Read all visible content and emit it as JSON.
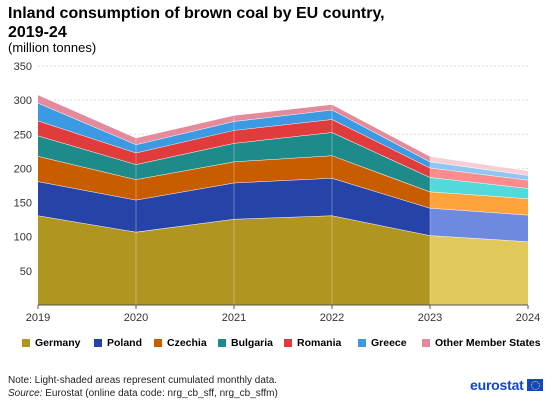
{
  "header": {
    "title": "Inland consumption of brown coal by EU country, 2019-24",
    "subtitle": "(million tonnes)"
  },
  "footer": {
    "note": "Note: Light-shaded areas represent cumulated monthly data.",
    "source_label": "Source:",
    "source_text": " Eurostat (online data code: nrg_cb_sff, nrg_cb_sffm)",
    "logo_text": "eurostat"
  },
  "chart_data": {
    "type": "area",
    "stacked": true,
    "categories": [
      "2019",
      "2020",
      "2021",
      "2022",
      "2023",
      "2024"
    ],
    "ylim": [
      0,
      350
    ],
    "yticks": [
      50,
      100,
      150,
      200,
      250,
      300,
      350
    ],
    "grid": true,
    "legend_position": "bottom",
    "light_shaded_from": "2023",
    "series": [
      {
        "name": "Germany",
        "color": "#b09520",
        "light_color": "#e0c95a",
        "values": [
          131,
          107,
          126,
          131,
          102,
          93
        ]
      },
      {
        "name": "Poland",
        "color": "#2644a7",
        "light_color": "#6e8ae0",
        "values": [
          50,
          47,
          53,
          55,
          40,
          39
        ]
      },
      {
        "name": "Czechia",
        "color": "#c85d00",
        "light_color": "#ffa33a",
        "values": [
          37,
          30,
          31,
          33,
          24,
          24
        ]
      },
      {
        "name": "Bulgaria",
        "color": "#1f8a8a",
        "light_color": "#53d9d9",
        "values": [
          30,
          22,
          27,
          34,
          21,
          15
        ]
      },
      {
        "name": "Romania",
        "color": "#e03c3c",
        "light_color": "#ff8c8c",
        "values": [
          22,
          17,
          19,
          19,
          14,
          12
        ]
      },
      {
        "name": "Greece",
        "color": "#3b9ae1",
        "light_color": "#8ec8f2",
        "values": [
          26,
          12,
          13,
          14,
          9,
          7
        ]
      },
      {
        "name": "Other Member States",
        "color": "#e48a9a",
        "light_color": "#f6cfd6",
        "values": [
          12,
          10,
          9,
          8,
          8,
          7
        ]
      }
    ]
  }
}
